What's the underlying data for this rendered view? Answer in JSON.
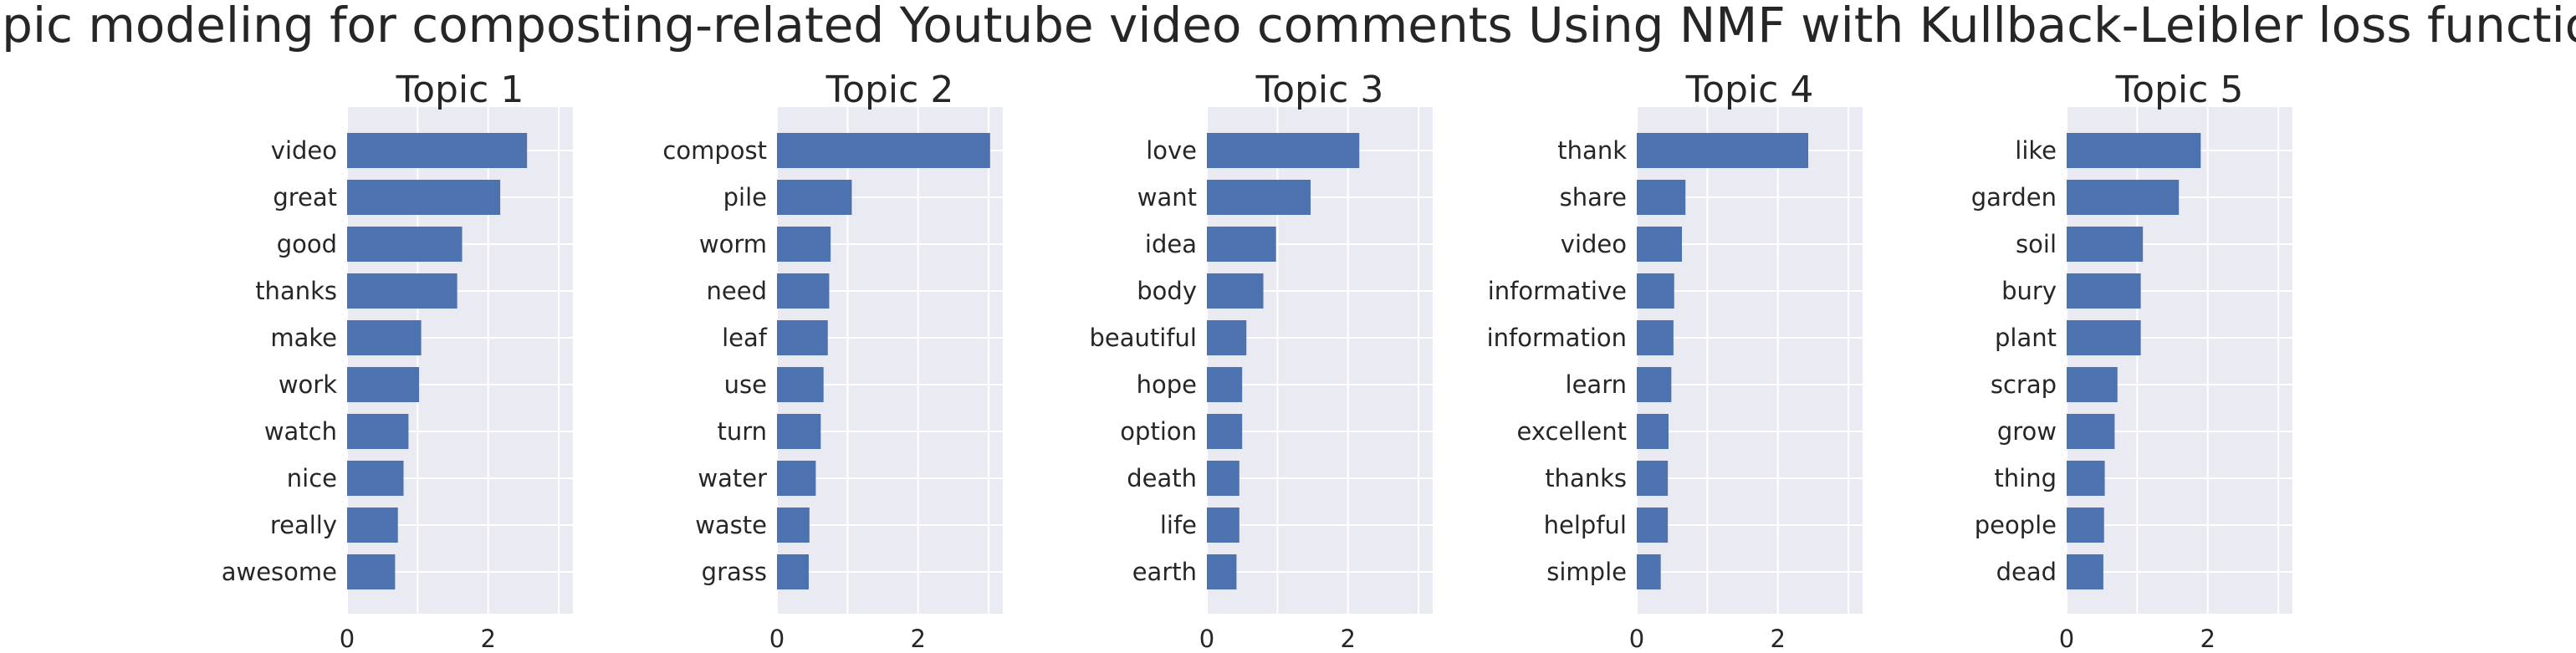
{
  "title": "Topic modeling for composting-related Youtube video comments Using NMF with Kullback-Leibler loss function",
  "colors": {
    "bar": "#4c72b0",
    "panel_bg": "#eaeaf2",
    "grid": "#ffffff",
    "text": "#262626"
  },
  "chart_data": [
    {
      "type": "bar",
      "orientation": "horizontal",
      "title": "Topic 1",
      "categories": [
        "video",
        "great",
        "good",
        "thanks",
        "make",
        "work",
        "watch",
        "nice",
        "really",
        "awesome"
      ],
      "values": [
        2.55,
        2.17,
        1.63,
        1.56,
        1.05,
        1.02,
        0.87,
        0.8,
        0.72,
        0.68
      ],
      "xlim": [
        0,
        3.2
      ],
      "xticks": [
        0,
        2
      ],
      "grid": true
    },
    {
      "type": "bar",
      "orientation": "horizontal",
      "title": "Topic 2",
      "categories": [
        "compost",
        "pile",
        "worm",
        "need",
        "leaf",
        "use",
        "turn",
        "water",
        "waste",
        "grass"
      ],
      "values": [
        3.02,
        1.06,
        0.76,
        0.74,
        0.72,
        0.66,
        0.62,
        0.55,
        0.46,
        0.45
      ],
      "xlim": [
        0,
        3.2
      ],
      "xticks": [
        0,
        2
      ],
      "grid": true
    },
    {
      "type": "bar",
      "orientation": "horizontal",
      "title": "Topic 3",
      "categories": [
        "love",
        "want",
        "idea",
        "body",
        "beautiful",
        "hope",
        "option",
        "death",
        "life",
        "earth"
      ],
      "values": [
        2.16,
        1.47,
        0.98,
        0.8,
        0.56,
        0.5,
        0.5,
        0.46,
        0.46,
        0.42
      ],
      "xlim": [
        0,
        3.2
      ],
      "xticks": [
        0,
        2
      ],
      "grid": true
    },
    {
      "type": "bar",
      "orientation": "horizontal",
      "title": "Topic 4",
      "categories": [
        "thank",
        "share",
        "video",
        "informative",
        "information",
        "learn",
        "excellent",
        "thanks",
        "helpful",
        "simple"
      ],
      "values": [
        2.43,
        0.69,
        0.64,
        0.53,
        0.52,
        0.49,
        0.45,
        0.44,
        0.44,
        0.34
      ],
      "xlim": [
        0,
        3.2
      ],
      "xticks": [
        0,
        2
      ],
      "grid": true
    },
    {
      "type": "bar",
      "orientation": "horizontal",
      "title": "Topic 5",
      "categories": [
        "like",
        "garden",
        "soil",
        "bury",
        "plant",
        "scrap",
        "grow",
        "thing",
        "people",
        "dead"
      ],
      "values": [
        1.9,
        1.59,
        1.08,
        1.05,
        1.05,
        0.72,
        0.68,
        0.54,
        0.53,
        0.52
      ],
      "xlim": [
        0,
        3.2
      ],
      "xticks": [
        0,
        2
      ],
      "grid": true
    }
  ]
}
